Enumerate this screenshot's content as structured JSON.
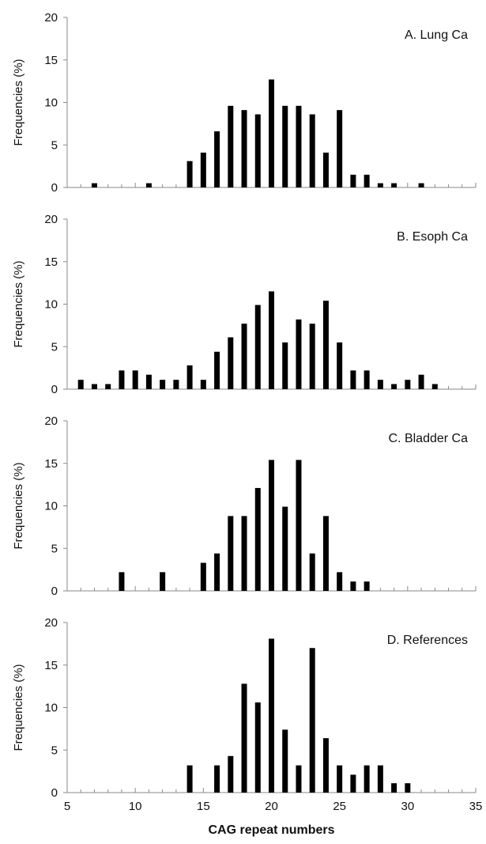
{
  "chart_data": [
    {
      "type": "bar",
      "title": "A. Lung Ca",
      "ylabel": "Frequencies (%)",
      "xlabel": "",
      "xlim": [
        5,
        35
      ],
      "ylim": [
        0,
        20
      ],
      "y_ticks": [
        0,
        5,
        10,
        15,
        20
      ],
      "x": [
        7,
        11,
        14,
        15,
        16,
        17,
        18,
        19,
        20,
        21,
        22,
        23,
        24,
        25,
        26,
        27,
        28,
        29,
        31
      ],
      "values": [
        0.5,
        0.5,
        3.1,
        4.1,
        6.6,
        9.6,
        9.1,
        8.6,
        12.7,
        9.6,
        9.6,
        8.6,
        4.1,
        9.1,
        1.5,
        1.5,
        0.5,
        0.5,
        0.5
      ]
    },
    {
      "type": "bar",
      "title": "B. Esoph Ca",
      "ylabel": "Frequencies (%)",
      "xlabel": "",
      "xlim": [
        5,
        35
      ],
      "ylim": [
        0,
        20
      ],
      "y_ticks": [
        0,
        5,
        10,
        15,
        20
      ],
      "x": [
        6,
        7,
        8,
        9,
        10,
        11,
        12,
        13,
        14,
        15,
        16,
        17,
        18,
        19,
        20,
        21,
        22,
        23,
        24,
        25,
        26,
        27,
        28,
        29,
        30,
        31,
        32
      ],
      "values": [
        1.1,
        0.6,
        0.6,
        2.2,
        2.2,
        1.7,
        1.1,
        1.1,
        2.8,
        1.1,
        4.4,
        6.1,
        7.7,
        9.9,
        11.5,
        5.5,
        8.2,
        7.7,
        10.4,
        5.5,
        2.2,
        2.2,
        1.1,
        0.6,
        1.1,
        1.7,
        0.6
      ]
    },
    {
      "type": "bar",
      "title": "C. Bladder Ca",
      "ylabel": "Frequencies (%)",
      "xlabel": "",
      "xlim": [
        5,
        35
      ],
      "ylim": [
        0,
        20
      ],
      "y_ticks": [
        0,
        5,
        10,
        15,
        20
      ],
      "x": [
        9,
        12,
        15,
        16,
        17,
        18,
        19,
        20,
        21,
        22,
        23,
        24,
        25,
        26,
        27
      ],
      "values": [
        2.2,
        2.2,
        3.3,
        4.4,
        8.8,
        8.8,
        12.1,
        15.4,
        9.9,
        15.4,
        4.4,
        8.8,
        2.2,
        1.1,
        1.1
      ]
    },
    {
      "type": "bar",
      "title": "D. References",
      "ylabel": "Frequencies (%)",
      "xlabel": "CAG repeat numbers",
      "xlim": [
        5,
        35
      ],
      "ylim": [
        0,
        20
      ],
      "y_ticks": [
        0,
        5,
        10,
        15,
        20
      ],
      "x_ticks": [
        5,
        10,
        15,
        20,
        25,
        30,
        35
      ],
      "x": [
        14,
        16,
        17,
        18,
        19,
        20,
        21,
        22,
        23,
        24,
        25,
        26,
        27,
        28,
        29,
        30
      ],
      "values": [
        3.2,
        3.2,
        4.3,
        12.8,
        10.6,
        18.1,
        7.4,
        3.2,
        17.0,
        6.4,
        3.2,
        2.1,
        3.2,
        3.2,
        1.1,
        1.1
      ]
    }
  ],
  "colors": {
    "bar": "#000000",
    "axis": "#888888",
    "text": "#111111"
  }
}
